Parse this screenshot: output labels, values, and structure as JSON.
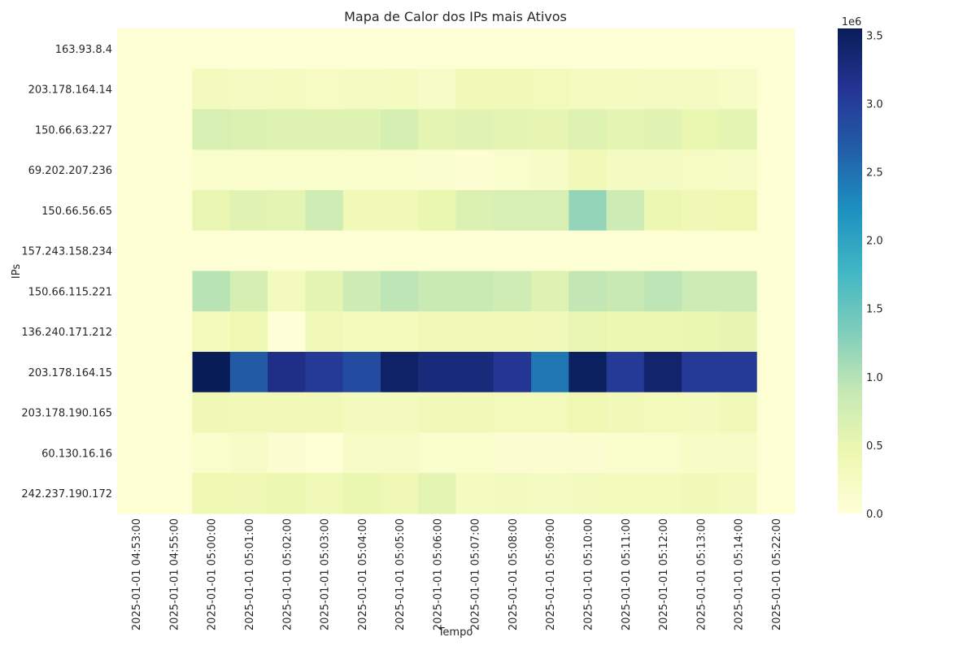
{
  "chart_data": {
    "type": "heatmap",
    "title": "Mapa de Calor dos IPs mais Ativos",
    "xlabel": "Tempo",
    "ylabel": "IPs",
    "x": [
      "2025-01-01 04:53:00",
      "2025-01-01 04:55:00",
      "2025-01-01 05:00:00",
      "2025-01-01 05:01:00",
      "2025-01-01 05:02:00",
      "2025-01-01 05:03:00",
      "2025-01-01 05:04:00",
      "2025-01-01 05:05:00",
      "2025-01-01 05:06:00",
      "2025-01-01 05:07:00",
      "2025-01-01 05:08:00",
      "2025-01-01 05:09:00",
      "2025-01-01 05:10:00",
      "2025-01-01 05:11:00",
      "2025-01-01 05:12:00",
      "2025-01-01 05:13:00",
      "2025-01-01 05:14:00",
      "2025-01-01 05:22:00"
    ],
    "y": [
      "163.93.8.4",
      "203.178.164.14",
      "150.66.63.227",
      "69.202.207.236",
      "150.66.56.65",
      "157.243.158.234",
      "150.66.115.221",
      "136.240.171.212",
      "203.178.164.15",
      "203.178.190.165",
      "60.130.16.16",
      "242.237.190.172"
    ],
    "values": [
      [
        0.06,
        0.06,
        0.06,
        0.06,
        0.06,
        0.06,
        0.06,
        0.06,
        0.06,
        0.06,
        0.06,
        0.06,
        0.06,
        0.06,
        0.06,
        0.06,
        0.06,
        0.06
      ],
      [
        0.06,
        0.06,
        0.3,
        0.26,
        0.28,
        0.25,
        0.26,
        0.28,
        0.22,
        0.38,
        0.38,
        0.33,
        0.28,
        0.28,
        0.26,
        0.26,
        0.22,
        0.06
      ],
      [
        0.06,
        0.06,
        0.7,
        0.65,
        0.62,
        0.62,
        0.62,
        0.72,
        0.55,
        0.58,
        0.55,
        0.52,
        0.62,
        0.55,
        0.6,
        0.48,
        0.55,
        0.06
      ],
      [
        0.06,
        0.06,
        0.14,
        0.14,
        0.14,
        0.14,
        0.14,
        0.14,
        0.12,
        0.08,
        0.14,
        0.2,
        0.38,
        0.26,
        0.26,
        0.24,
        0.22,
        0.06
      ],
      [
        0.06,
        0.06,
        0.5,
        0.58,
        0.55,
        0.8,
        0.35,
        0.35,
        0.48,
        0.65,
        0.7,
        0.7,
        1.2,
        0.82,
        0.45,
        0.4,
        0.42,
        0.06
      ],
      [
        0.06,
        0.06,
        0.06,
        0.06,
        0.06,
        0.06,
        0.06,
        0.06,
        0.06,
        0.06,
        0.06,
        0.06,
        0.06,
        0.06,
        0.06,
        0.06,
        0.06,
        0.06
      ],
      [
        0.06,
        0.06,
        0.98,
        0.72,
        0.3,
        0.55,
        0.82,
        0.95,
        0.85,
        0.85,
        0.8,
        0.62,
        0.92,
        0.88,
        0.95,
        0.82,
        0.82,
        0.06
      ],
      [
        0.06,
        0.06,
        0.32,
        0.42,
        0.02,
        0.38,
        0.32,
        0.32,
        0.38,
        0.38,
        0.38,
        0.36,
        0.5,
        0.45,
        0.45,
        0.48,
        0.52,
        0.06
      ],
      [
        0.06,
        0.06,
        3.55,
        2.7,
        3.2,
        3.05,
        2.85,
        3.45,
        3.3,
        3.3,
        3.1,
        2.45,
        3.5,
        3.05,
        3.4,
        3.05,
        3.05,
        0.06
      ],
      [
        0.06,
        0.06,
        0.4,
        0.35,
        0.35,
        0.35,
        0.3,
        0.3,
        0.35,
        0.35,
        0.33,
        0.33,
        0.42,
        0.35,
        0.33,
        0.3,
        0.38,
        0.06
      ],
      [
        0.06,
        0.06,
        0.14,
        0.2,
        0.1,
        0.06,
        0.2,
        0.2,
        0.16,
        0.16,
        0.1,
        0.1,
        0.1,
        0.16,
        0.16,
        0.2,
        0.2,
        0.06
      ],
      [
        0.06,
        0.06,
        0.42,
        0.4,
        0.45,
        0.38,
        0.48,
        0.4,
        0.55,
        0.28,
        0.3,
        0.26,
        0.3,
        0.32,
        0.32,
        0.35,
        0.3,
        0.06
      ]
    ],
    "colorbar": {
      "min": 0.0,
      "max": 3.55,
      "ticks": [
        0.0,
        0.5,
        1.0,
        1.5,
        2.0,
        2.5,
        3.0,
        3.5
      ],
      "tick_labels": [
        "0.0",
        "0.5",
        "1.0",
        "1.5",
        "2.0",
        "2.5",
        "3.0",
        "3.5"
      ],
      "scale_label": "1e6",
      "colormap": "YlGnBu"
    }
  }
}
